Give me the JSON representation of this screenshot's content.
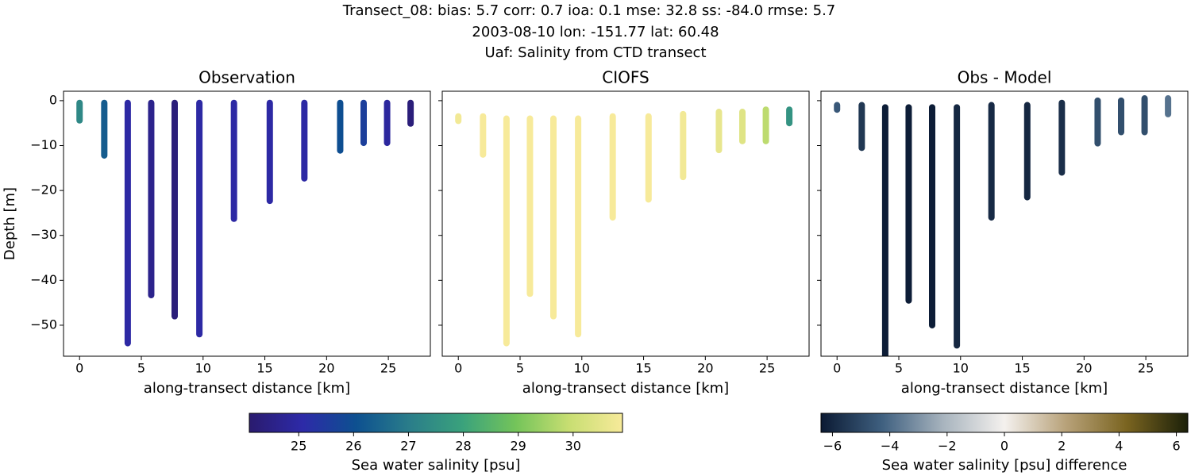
{
  "title": [
    "Transect_08: bias: 5.7  corr: 0.7  ioa: 0.1  mse: 32.8  ss: -84.0  rmse: 5.7",
    "2003-08-10 lon: -151.77 lat: 60.48",
    "Uaf: Salinity from CTD transect"
  ],
  "chart_data": [
    {
      "type": "scatter",
      "title": "Observation",
      "xlabel": "along-transect distance [km]",
      "ylabel": "Depth [m]",
      "x": [
        0,
        2.0,
        3.9,
        5.8,
        7.7,
        9.7,
        12.5,
        15.4,
        18.2,
        21.1,
        23.0,
        24.9,
        26.8
      ],
      "depth_top": [
        -0.5,
        -0.5,
        -0.5,
        -0.5,
        -0.5,
        -0.5,
        -0.5,
        -0.5,
        -0.5,
        -0.5,
        -0.5,
        -0.5,
        -0.5
      ],
      "depth_bottom": [
        -4.4,
        -12.2,
        -54,
        -43.3,
        -48,
        -52,
        -26.3,
        -22.3,
        -17.3,
        -11.1,
        -9.4,
        -9.4,
        -5.1
      ],
      "values": [
        27.3,
        26.3,
        25.0,
        24.6,
        24.3,
        25.0,
        25.0,
        25.0,
        25.0,
        26.0,
        25.6,
        24.9,
        24.3
      ],
      "xlim": [
        -1.3,
        28.4
      ],
      "ylim": [
        2.1,
        -56.9
      ],
      "xticks": [
        0,
        5,
        10,
        15,
        20,
        25
      ],
      "yticks": [
        0,
        {
          "value": -10,
          "label": "−10"
        },
        {
          "value": -20,
          "label": "−20"
        },
        {
          "value": -30,
          "label": "−30"
        },
        {
          "value": -40,
          "label": "−40"
        },
        {
          "value": -50,
          "label": "−50"
        }
      ]
    },
    {
      "type": "scatter",
      "title": "CIOFS",
      "xlabel": "along-transect distance [km]",
      "x": [
        0,
        2.0,
        3.9,
        5.8,
        7.7,
        9.7,
        12.5,
        15.4,
        18.2,
        21.1,
        23.0,
        24.9,
        26.8
      ],
      "depth_top": [
        -3.5,
        -3.5,
        -4,
        -4,
        -4,
        -4,
        -3.5,
        -3.5,
        -3,
        -2.5,
        -2.5,
        -2,
        -2
      ],
      "depth_bottom": [
        -4.5,
        -12,
        -54,
        -43,
        -48,
        -52,
        -26,
        -22,
        -17,
        -11,
        -9,
        -9,
        -5
      ],
      "values": [
        30.8,
        30.9,
        30.9,
        30.9,
        30.9,
        30.9,
        30.9,
        30.9,
        30.8,
        30.6,
        30.4,
        29.8,
        27.6
      ],
      "xlim": [
        -1.3,
        28.4
      ],
      "ylim": [
        2.1,
        -56.9
      ],
      "xticks": [
        0,
        5,
        10,
        15,
        20,
        25
      ],
      "yticks": [
        0,
        -10,
        -20,
        -30,
        -40,
        -50
      ],
      "ytick_labels": false
    },
    {
      "type": "scatter",
      "title": "Obs - Model",
      "xlabel": "along-transect distance [km]",
      "x": [
        0,
        2.0,
        3.9,
        5.8,
        7.7,
        9.7,
        12.5,
        15.4,
        18.2,
        21.1,
        23.0,
        24.9,
        26.8
      ],
      "depth_top": [
        -1,
        -1,
        -1.5,
        -1.5,
        -1.5,
        -1.5,
        -1,
        -1,
        -0.5,
        0,
        0,
        0.5,
        0.5
      ],
      "depth_bottom": [
        -2,
        -10.5,
        -57,
        -44.5,
        -50,
        -54.5,
        -26,
        -21.5,
        -16,
        -9.5,
        -7,
        -7,
        -3
      ],
      "values": [
        -4.5,
        -5.5,
        -6.3,
        -6.3,
        -6.3,
        -6.0,
        -5.9,
        -6.0,
        -5.8,
        -4.8,
        -4.8,
        -4.8,
        -3.8
      ],
      "xlim": [
        -1.3,
        28.4
      ],
      "ylim": [
        2.1,
        -56.9
      ],
      "xticks": [
        0,
        5,
        10,
        15,
        20,
        25
      ],
      "yticks": [
        0,
        -10,
        -20,
        -30,
        -40,
        -50
      ],
      "ytick_labels": false
    }
  ],
  "colorbars": [
    {
      "label": "Sea water salinity [psu]",
      "clim": [
        24.1,
        30.9
      ],
      "ticks": [
        25,
        26,
        27,
        28,
        29,
        30
      ],
      "cmap": [
        "#2a1b6e",
        "#2d2aa8",
        "#0d5090",
        "#2a7d8a",
        "#3aa27c",
        "#74c45a",
        "#c8de72",
        "#f7ea9a"
      ]
    },
    {
      "label": "Sea water salinity [psu] difference",
      "clim": [
        -6.4,
        6.4
      ],
      "ticks": [
        {
          "value": -6,
          "label": "−6"
        },
        {
          "value": -4,
          "label": "−4"
        },
        {
          "value": -2,
          "label": "−2"
        },
        0,
        2,
        4,
        6
      ],
      "cmap": [
        "#0b1a33",
        "#3f6080",
        "#a8b4be",
        "#f4f1ee",
        "#b8a27a",
        "#7a6420",
        "#1b2009"
      ]
    }
  ]
}
